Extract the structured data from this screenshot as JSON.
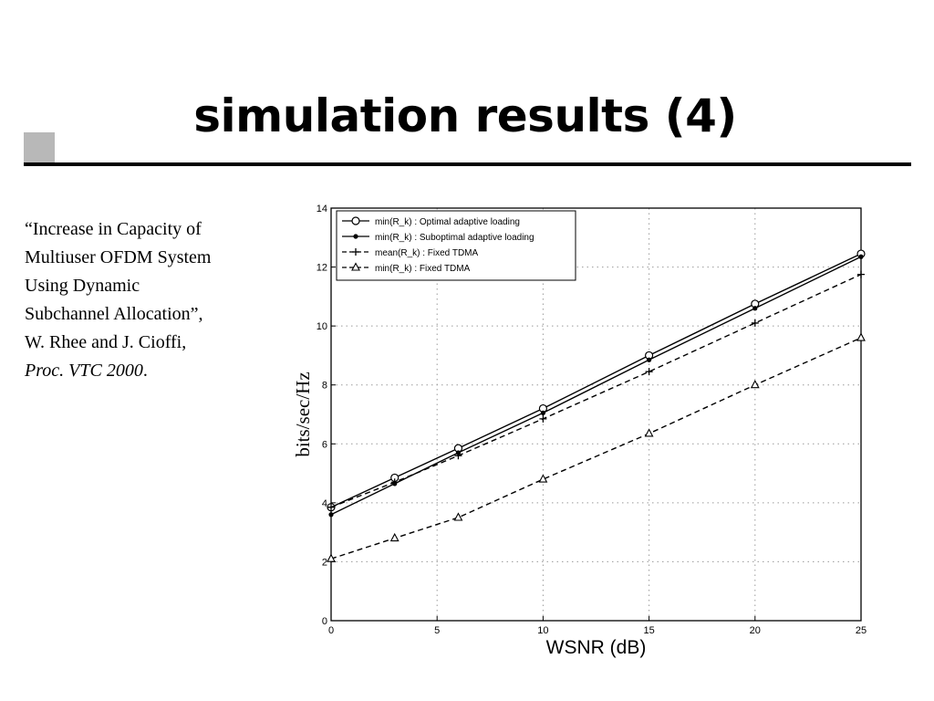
{
  "slide": {
    "title": "simulation results (4)",
    "citation": {
      "line1": "“Increase in Capacity of",
      "line2": "Multiuser OFDM System",
      "line3": "Using Dynamic",
      "line4": "Subchannel Allocation”,",
      "line5": "W. Rhee and J. Cioffi,",
      "line6_italic": "Proc. VTC 2000",
      "line6_tail": "."
    }
  },
  "chart_data": {
    "type": "line",
    "xlabel": "WSNR (dB)",
    "ylabel": "bits/sec/Hz",
    "xlim": [
      0,
      25
    ],
    "ylim": [
      0,
      14
    ],
    "x_ticks": [
      0,
      5,
      10,
      15,
      20,
      25
    ],
    "y_ticks": [
      0,
      2,
      4,
      6,
      8,
      10,
      12,
      14
    ],
    "grid": true,
    "legend_position": "top-left",
    "x": [
      0,
      3,
      6,
      10,
      15,
      20,
      25
    ],
    "series": [
      {
        "name": "min(R_k) : Optimal adaptive loading",
        "values": [
          3.85,
          4.85,
          5.85,
          7.2,
          9.0,
          10.75,
          12.45
        ],
        "line_style": "solid",
        "marker": "circle"
      },
      {
        "name": "min(R_k) : Suboptimal adaptive loading",
        "values": [
          3.6,
          4.65,
          5.7,
          7.05,
          8.85,
          10.6,
          12.35
        ],
        "line_style": "solid",
        "marker": "dot"
      },
      {
        "name": "mean(R_k) : Fixed TDMA",
        "values": [
          3.85,
          4.7,
          5.6,
          6.85,
          8.45,
          10.1,
          11.75
        ],
        "line_style": "dashed",
        "marker": "plus"
      },
      {
        "name": "min(R_k) : Fixed TDMA",
        "values": [
          2.1,
          2.8,
          3.5,
          4.8,
          6.35,
          8.0,
          9.6
        ],
        "line_style": "dashed",
        "marker": "triangle"
      }
    ]
  }
}
